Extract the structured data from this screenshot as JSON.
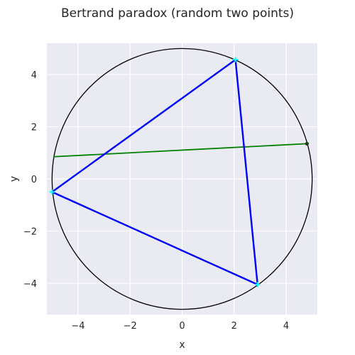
{
  "chart_data": {
    "type": "line",
    "title": "Bertrand paradox (random two points)",
    "xlabel": "x",
    "ylabel": "y",
    "xlim": [
      -5.2,
      5.2
    ],
    "ylim": [
      -5.2,
      5.2
    ],
    "xticks": [
      -4,
      -2,
      0,
      2,
      4
    ],
    "yticks": [
      -4,
      -2,
      0,
      2,
      4
    ],
    "xtick_labels": [
      "−4",
      "−2",
      "0",
      "2",
      "4"
    ],
    "ytick_labels": [
      "−4",
      "−2",
      "0",
      "2",
      "4"
    ],
    "grid": true,
    "circle": {
      "center": [
        0,
        0
      ],
      "radius": 5,
      "color": "#000000"
    },
    "triangle": {
      "color": "#0000ff",
      "vertex_color": "#00ffff",
      "vertices": [
        [
          2.05,
          4.57
        ],
        [
          -5.0,
          -0.5
        ],
        [
          2.9,
          -4.05
        ]
      ]
    },
    "chord": {
      "color": "#008000",
      "endpoints": [
        [
          -4.95,
          0.85
        ],
        [
          4.8,
          1.35
        ]
      ],
      "marked_point": [
        4.8,
        1.35
      ],
      "marked_point_color": "#1a3d1a"
    },
    "colors": {
      "plot_background": "#eaeaf2",
      "grid": "#ffffff",
      "text": "#262626"
    }
  }
}
